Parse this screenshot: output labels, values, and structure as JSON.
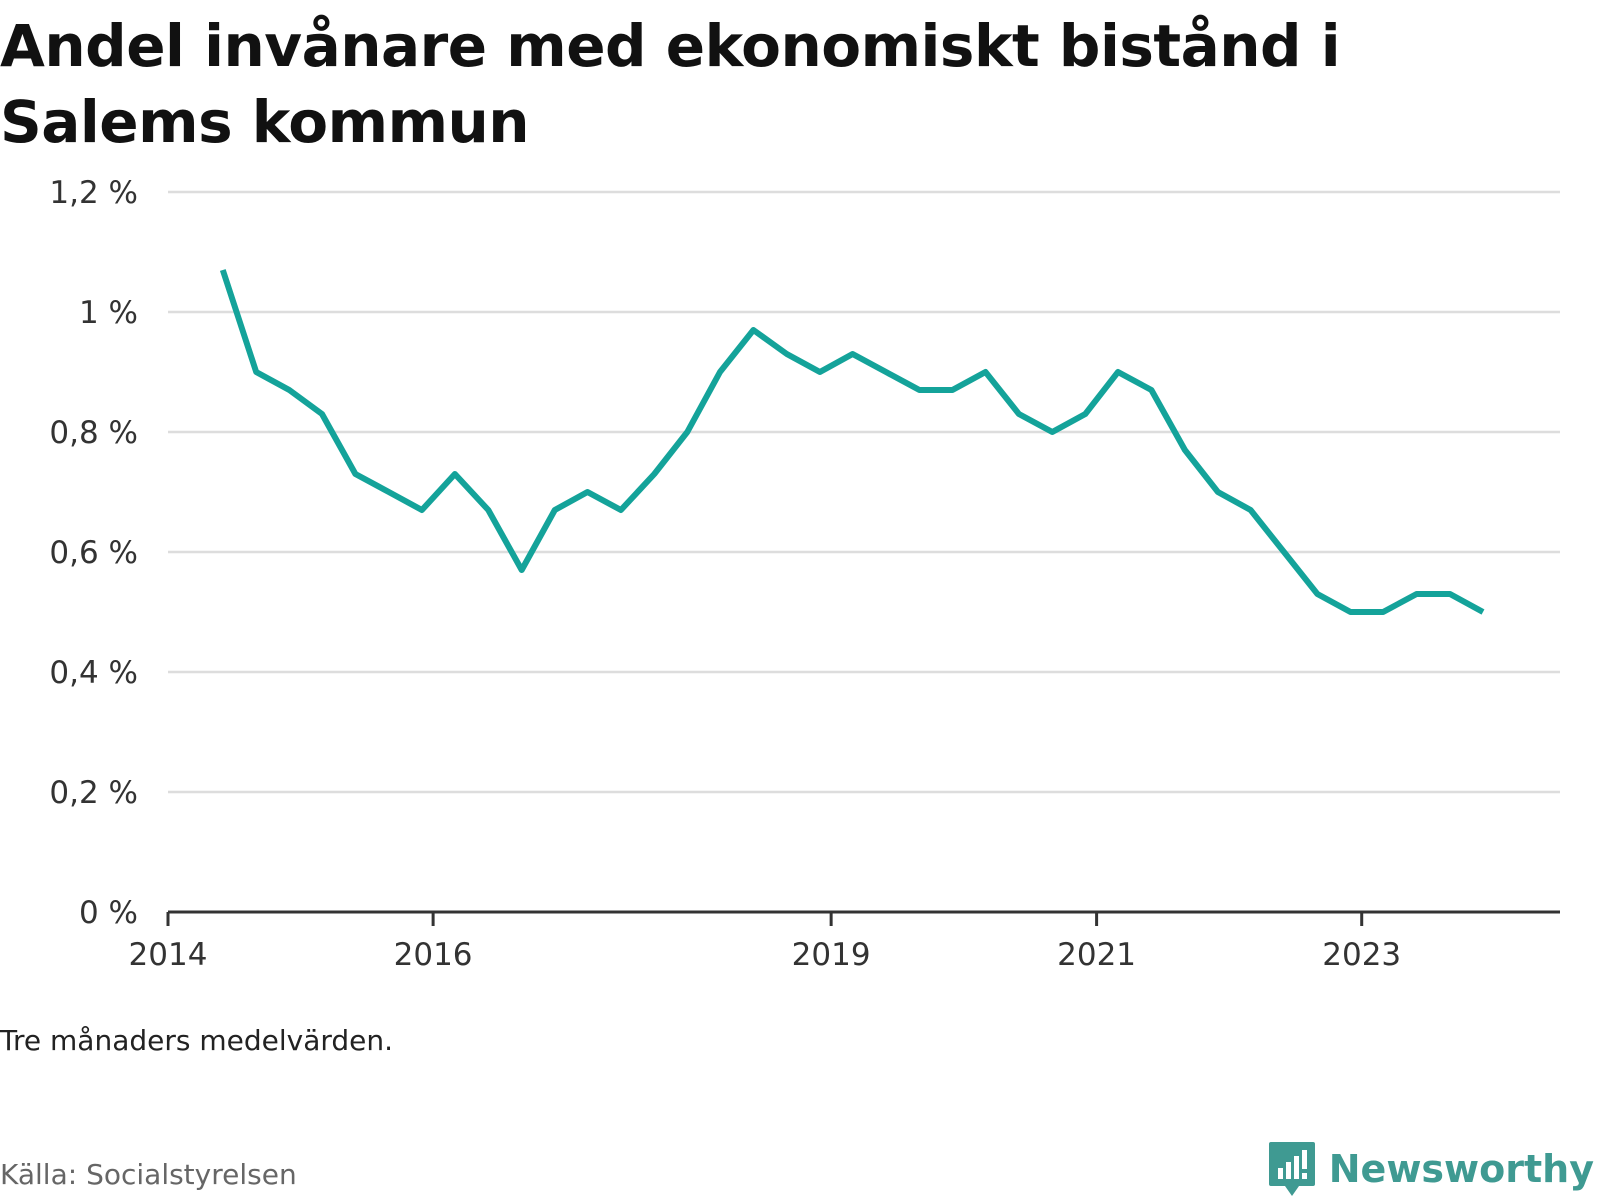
{
  "title": "Andel invånare med ekonomiskt bistånd i Salems kommun",
  "note": "Tre månaders medelvärden.",
  "source": "Källa: Socialstyrelsen",
  "brand": "Newsworthy",
  "colors": {
    "line": "#14a39a",
    "grid": "#dddddd",
    "axis": "#333333",
    "brand": "#3f9a92"
  },
  "chart_data": {
    "type": "line",
    "title": "Andel invånare med ekonomiskt bistånd i Salems kommun",
    "xlabel": "",
    "ylabel": "",
    "ylim": [
      0,
      1.2
    ],
    "xlim": [
      "2014-01-01",
      "2024-06-30"
    ],
    "yticks": [
      {
        "value": 0,
        "label": "0 %"
      },
      {
        "value": 0.2,
        "label": "0,2 %"
      },
      {
        "value": 0.4,
        "label": "0,4 %"
      },
      {
        "value": 0.6,
        "label": "0,6 %"
      },
      {
        "value": 0.8,
        "label": "0,8 %"
      },
      {
        "value": 1.0,
        "label": "1 %"
      },
      {
        "value": 1.2,
        "label": "1,2 %"
      }
    ],
    "xticks": [
      {
        "value": "2014-01-01",
        "label": "2014"
      },
      {
        "value": "2016-01-01",
        "label": "2016"
      },
      {
        "value": "2019-01-01",
        "label": "2019"
      },
      {
        "value": "2021-01-01",
        "label": "2021"
      },
      {
        "value": "2023-01-01",
        "label": "2023"
      }
    ],
    "grid": true,
    "series": [
      {
        "points": [
          {
            "x": "2014-06",
            "y": 1.07
          },
          {
            "x": "2014-09",
            "y": 0.9
          },
          {
            "x": "2014-12",
            "y": 0.87
          },
          {
            "x": "2015-03",
            "y": 0.83
          },
          {
            "x": "2015-06",
            "y": 0.73
          },
          {
            "x": "2015-09",
            "y": 0.7
          },
          {
            "x": "2015-12",
            "y": 0.67
          },
          {
            "x": "2016-03",
            "y": 0.73
          },
          {
            "x": "2016-06",
            "y": 0.67
          },
          {
            "x": "2016-09",
            "y": 0.57
          },
          {
            "x": "2016-12",
            "y": 0.67
          },
          {
            "x": "2017-03",
            "y": 0.7
          },
          {
            "x": "2017-06",
            "y": 0.67
          },
          {
            "x": "2017-09",
            "y": 0.73
          },
          {
            "x": "2017-12",
            "y": 0.8
          },
          {
            "x": "2018-03",
            "y": 0.9
          },
          {
            "x": "2018-06",
            "y": 0.97
          },
          {
            "x": "2018-09",
            "y": 0.93
          },
          {
            "x": "2018-12",
            "y": 0.9
          },
          {
            "x": "2019-03",
            "y": 0.93
          },
          {
            "x": "2019-06",
            "y": 0.9
          },
          {
            "x": "2019-09",
            "y": 0.87
          },
          {
            "x": "2019-12",
            "y": 0.87
          },
          {
            "x": "2020-03",
            "y": 0.9
          },
          {
            "x": "2020-06",
            "y": 0.83
          },
          {
            "x": "2020-09",
            "y": 0.8
          },
          {
            "x": "2020-12",
            "y": 0.83
          },
          {
            "x": "2021-03",
            "y": 0.9
          },
          {
            "x": "2021-06",
            "y": 0.87
          },
          {
            "x": "2021-09",
            "y": 0.77
          },
          {
            "x": "2021-12",
            "y": 0.7
          },
          {
            "x": "2022-03",
            "y": 0.67
          },
          {
            "x": "2022-06",
            "y": 0.6
          },
          {
            "x": "2022-09",
            "y": 0.53
          },
          {
            "x": "2022-12",
            "y": 0.5
          },
          {
            "x": "2023-03",
            "y": 0.5
          },
          {
            "x": "2023-06",
            "y": 0.53
          },
          {
            "x": "2023-09",
            "y": 0.53
          },
          {
            "x": "2023-12",
            "y": 0.5
          }
        ]
      }
    ]
  }
}
